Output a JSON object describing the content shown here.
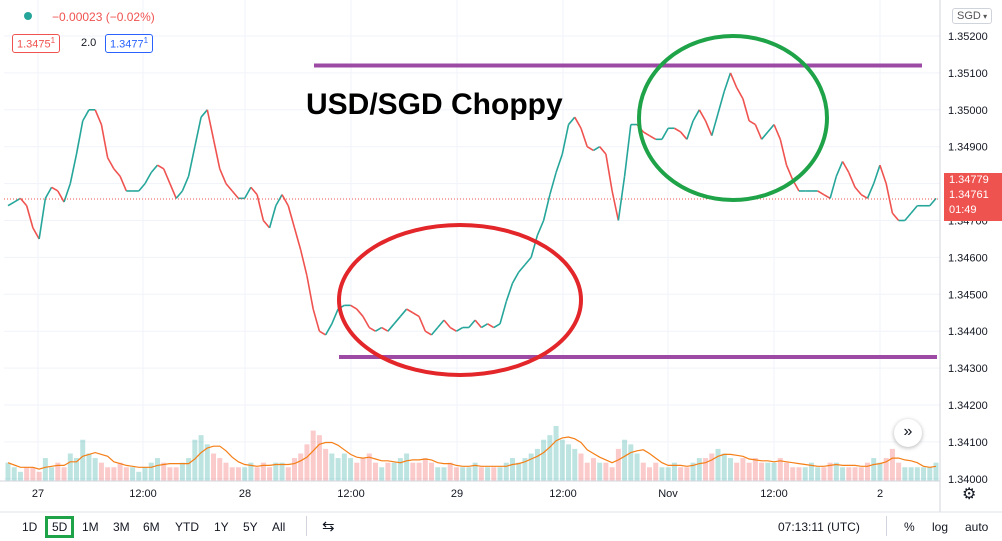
{
  "header": {
    "change": "−0.00023 (−0.02%)",
    "bid": "1.3475",
    "bid_sup": "1",
    "spread": "2.0",
    "ask": "1.3477",
    "ask_sup": "1",
    "currency": "SGD"
  },
  "axis_right": {
    "ticks": [
      "1.35200",
      "1.35100",
      "1.35000",
      "1.34900",
      "1.34800",
      "1.34700",
      "1.34600",
      "1.34500",
      "1.34400",
      "1.34300",
      "1.34200",
      "1.34100",
      "1.34000"
    ],
    "last_price": "1.34779",
    "marker_price": "1.34761",
    "countdown": "01:49",
    "last_color": "#ef5350"
  },
  "axis_bottom": [
    "27",
    "12:00",
    "28",
    "12:00",
    "29",
    "12:00",
    "Nov",
    "12:00",
    "2"
  ],
  "annotation": {
    "title": "USD/SGD Choppy"
  },
  "bottombar": {
    "timeframes": [
      "1D",
      "5D",
      "1M",
      "3M",
      "6M",
      "YTD",
      "1Y",
      "5Y",
      "All"
    ],
    "selected": "5D",
    "time": "07:13:11 (UTC)",
    "percent": "%",
    "log": "log",
    "auto": "auto"
  },
  "colors": {
    "up": "#26a69a",
    "down": "#ef5350",
    "resistance_line": "#9c4aa4",
    "ma": "#f57f17"
  },
  "chart_data": {
    "type": "line",
    "title": "USD/SGD Choppy",
    "xlabel": "",
    "ylabel": "",
    "ylim": [
      1.34,
      1.3525
    ],
    "x_ticks": [
      "27",
      "12:00",
      "28",
      "12:00",
      "29",
      "12:00",
      "Nov",
      "12:00",
      "2"
    ],
    "y_ticks": [
      1.352,
      1.351,
      1.35,
      1.349,
      1.348,
      1.347,
      1.346,
      1.345,
      1.344,
      1.343,
      1.342,
      1.341,
      1.34
    ],
    "series": [
      {
        "values": [
          1.3474,
          1.3475,
          1.3476,
          1.3474,
          1.3468,
          1.3465,
          1.3476,
          1.3479,
          1.3478,
          1.3475,
          1.348,
          1.3488,
          1.3497,
          1.35,
          1.35,
          1.3496,
          1.3487,
          1.3484,
          1.3482,
          1.3478,
          1.3478,
          1.3478,
          1.348,
          1.3483,
          1.3485,
          1.3484,
          1.348,
          1.3476,
          1.3478,
          1.3482,
          1.349,
          1.3498,
          1.35,
          1.3492,
          1.3484,
          1.348,
          1.3478,
          1.3476,
          1.3476,
          1.3479,
          1.3477,
          1.347,
          1.3468,
          1.3474,
          1.3477,
          1.3474,
          1.3468,
          1.3462,
          1.3455,
          1.3446,
          1.344,
          1.3439,
          1.3442,
          1.3446,
          1.3447,
          1.3447,
          1.3446,
          1.3444,
          1.3441,
          1.344,
          1.3441,
          1.344,
          1.3442,
          1.3444,
          1.3446,
          1.3445,
          1.3444,
          1.344,
          1.3439,
          1.3441,
          1.3443,
          1.3441,
          1.344,
          1.3441,
          1.3441,
          1.3443,
          1.3441,
          1.3442,
          1.3441,
          1.3442,
          1.3448,
          1.3453,
          1.3456,
          1.3458,
          1.346,
          1.3466,
          1.347,
          1.3477,
          1.3483,
          1.3488,
          1.3496,
          1.3498,
          1.3495,
          1.349,
          1.3489,
          1.349,
          1.3488,
          1.3478,
          1.347,
          1.3482,
          1.3496,
          1.3496,
          1.3494,
          1.3493,
          1.3492,
          1.3492,
          1.3495,
          1.3495,
          1.3494,
          1.3492,
          1.3497,
          1.35,
          1.3497,
          1.3493,
          1.3499,
          1.3505,
          1.351,
          1.3506,
          1.3503,
          1.3497,
          1.3496,
          1.3492,
          1.3494,
          1.3496,
          1.3492,
          1.3485,
          1.3481,
          1.3478,
          1.3478,
          1.3478,
          1.3478,
          1.3477,
          1.3476,
          1.3482,
          1.3486,
          1.3483,
          1.3479,
          1.3477,
          1.3476,
          1.348,
          1.3485,
          1.348,
          1.3472,
          1.347,
          1.347,
          1.3472,
          1.3474,
          1.3474,
          1.3474,
          1.3476
        ]
      }
    ],
    "volume": [
      4,
      3,
      2,
      3,
      3,
      2,
      5,
      3,
      4,
      3,
      6,
      5,
      9,
      6,
      5,
      4,
      3,
      3,
      4,
      3,
      3,
      2,
      3,
      4,
      5,
      4,
      3,
      3,
      4,
      5,
      9,
      10,
      8,
      6,
      5,
      4,
      3,
      3,
      3,
      4,
      3,
      4,
      3,
      4,
      4,
      3,
      5,
      6,
      8,
      11,
      10,
      7,
      6,
      5,
      6,
      5,
      4,
      5,
      6,
      4,
      3,
      4,
      4,
      5,
      6,
      4,
      4,
      5,
      4,
      3,
      3,
      4,
      3,
      3,
      3,
      4,
      3,
      3,
      3,
      3,
      4,
      5,
      4,
      5,
      6,
      7,
      9,
      10,
      12,
      9,
      8,
      7,
      6,
      4,
      5,
      4,
      4,
      3,
      7,
      9,
      8,
      6,
      4,
      3,
      4,
      3,
      3,
      4,
      3,
      3,
      4,
      5,
      5,
      6,
      7,
      6,
      5,
      4,
      5,
      4,
      5,
      4,
      4,
      4,
      5,
      4,
      3,
      3,
      3,
      4,
      3,
      3,
      4,
      4,
      3,
      3,
      3,
      3,
      4,
      5,
      4,
      5,
      7,
      4,
      3,
      3,
      3,
      3,
      3,
      4
    ]
  }
}
